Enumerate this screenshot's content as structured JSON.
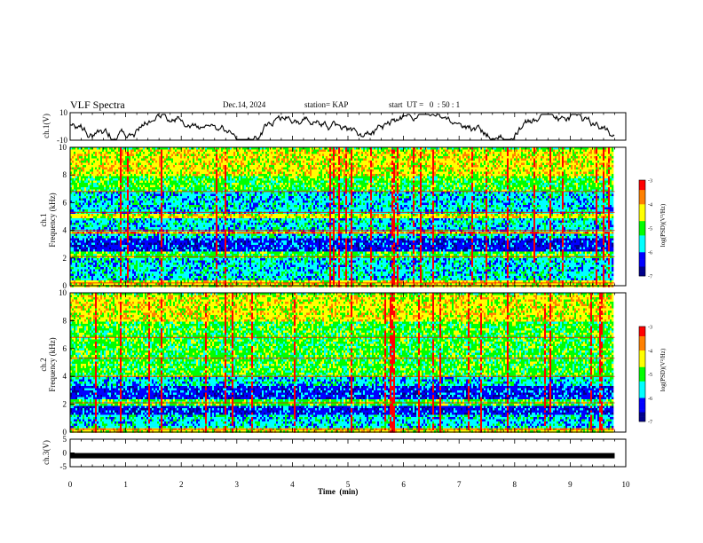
{
  "header": {
    "title": "VLF Spectra",
    "date": "Dec.14, 2024",
    "station": "station= KAP",
    "start": "start  UT =   0  : 50 : 1"
  },
  "colors": {
    "spectrogram_ramp": [
      "#00008b",
      "#0000ff",
      "#00ffff",
      "#00ff00",
      "#ffff00",
      "#ff8000",
      "#ff0000"
    ]
  },
  "chart_data": [
    {
      "type": "line",
      "name": "ch1-waveform",
      "ylabel": "ch.1(V)",
      "ylim": [
        -10,
        10
      ],
      "ytick_labels": [
        "10",
        "-10"
      ],
      "xlim": [
        0,
        10
      ],
      "series": [
        {
          "name": "ch.1",
          "description_trace": "noisy waveform roughly between -6 and 8 V"
        }
      ]
    },
    {
      "type": "heatmap",
      "name": "ch1-spectrogram",
      "ylabel": "ch.1\nFrequency (kHz)",
      "ylabel_line1": "ch.1",
      "ylabel_line2": "Frequency (kHz)",
      "ylim": [
        0,
        10
      ],
      "ytick_labels": [
        "0",
        "2",
        "4",
        "6",
        "8",
        "10"
      ],
      "xlim": [
        0,
        10
      ],
      "colorbar": {
        "label": "log(PSD)(V²/Hz)",
        "range": [
          -7,
          -3
        ],
        "tick_labels": [
          "-3",
          "-4",
          "-5",
          "-6",
          "-7"
        ]
      },
      "bands_khz": [
        {
          "from": 0.0,
          "to": 0.5,
          "level": 4
        },
        {
          "from": 0.5,
          "to": 1.2,
          "level": 2
        },
        {
          "from": 1.2,
          "to": 2.0,
          "level": 2
        },
        {
          "from": 2.0,
          "to": 2.6,
          "level": 3
        },
        {
          "from": 2.6,
          "to": 3.5,
          "level": 1
        },
        {
          "from": 3.5,
          "to": 3.8,
          "level": 2
        },
        {
          "from": 3.8,
          "to": 4.0,
          "level": 5
        },
        {
          "from": 4.0,
          "to": 5.0,
          "level": 2
        },
        {
          "from": 5.0,
          "to": 5.3,
          "level": 4
        },
        {
          "from": 5.3,
          "to": 6.8,
          "level": 2
        },
        {
          "from": 6.8,
          "to": 8.0,
          "level": 3
        },
        {
          "from": 8.0,
          "to": 10.0,
          "level": 4
        }
      ]
    },
    {
      "type": "heatmap",
      "name": "ch2-spectrogram",
      "ylabel": "ch.2\nFrequency (kHz)",
      "ylabel_line1": "ch.2",
      "ylabel_line2": "Frequency (kHz)",
      "ylim": [
        0,
        10
      ],
      "ytick_labels": [
        "0",
        "2",
        "4",
        "6",
        "8",
        "10"
      ],
      "xlim": [
        0,
        10
      ],
      "colorbar": {
        "label": "log(PSD)(V²/Hz)",
        "range": [
          -7,
          -3
        ],
        "tick_labels": [
          "-3",
          "-4",
          "-5",
          "-6",
          "-7"
        ]
      },
      "bands_khz": [
        {
          "from": 0.0,
          "to": 0.4,
          "level": 4
        },
        {
          "from": 0.4,
          "to": 1.4,
          "level": 2
        },
        {
          "from": 1.4,
          "to": 2.0,
          "level": 1
        },
        {
          "from": 2.0,
          "to": 2.4,
          "level": 3
        },
        {
          "from": 2.4,
          "to": 3.4,
          "level": 1
        },
        {
          "from": 3.4,
          "to": 4.0,
          "level": 2
        },
        {
          "from": 4.0,
          "to": 6.0,
          "level": 3
        },
        {
          "from": 6.0,
          "to": 8.0,
          "level": 3
        },
        {
          "from": 8.0,
          "to": 10.0,
          "level": 4
        }
      ]
    },
    {
      "type": "line",
      "name": "ch3-waveform",
      "ylabel": "ch.3(V)",
      "ylim": [
        -5,
        5
      ],
      "ytick_labels": [
        "5",
        "0",
        "-5"
      ],
      "xlim": [
        0,
        10
      ],
      "series": [
        {
          "name": "ch.3",
          "constant_value": -1
        }
      ]
    }
  ],
  "xaxis": {
    "label": "Time  (min)",
    "tick_labels": [
      "0",
      "1",
      "2",
      "3",
      "4",
      "5",
      "6",
      "7",
      "8",
      "9",
      "10"
    ],
    "data_end": 9.8
  }
}
